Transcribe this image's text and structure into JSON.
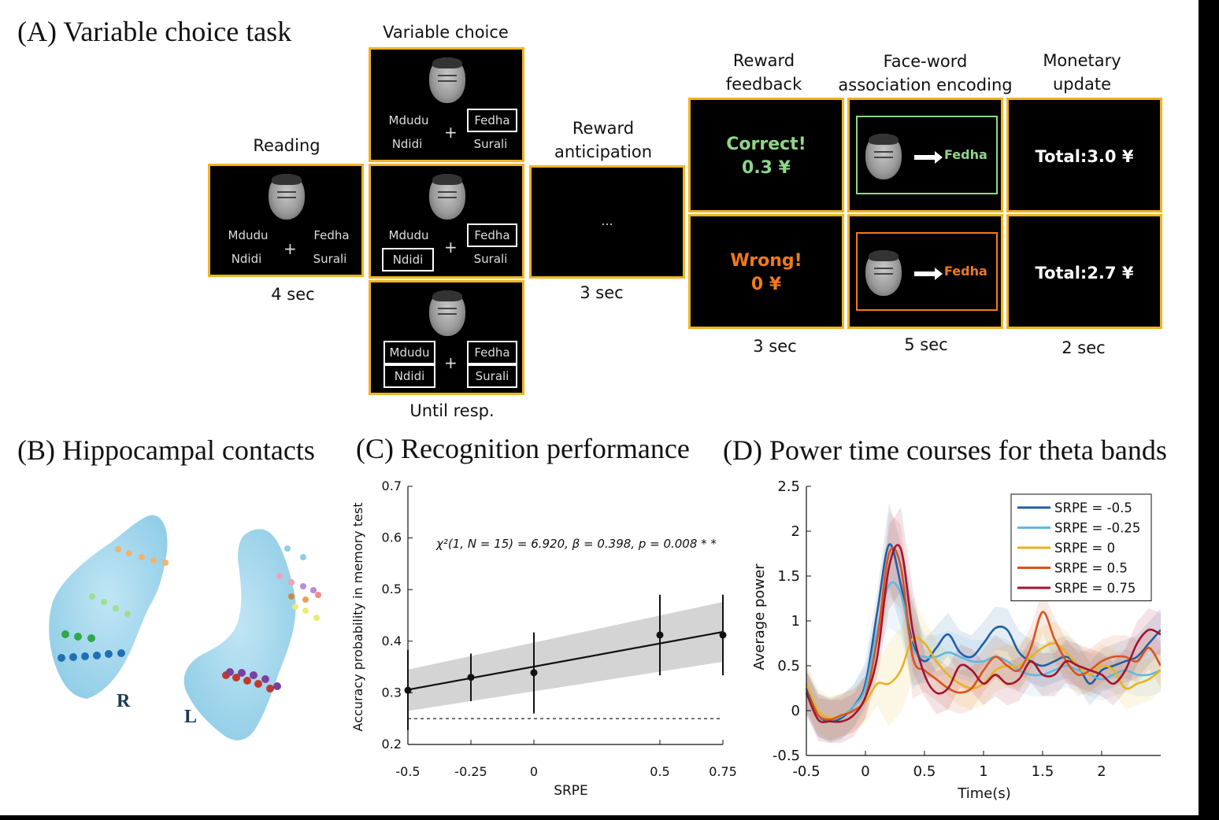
{
  "panels": {
    "a": "(A) Variable choice task",
    "b": "(B) Hippocampal contacts",
    "c": "(C) Recognition performance",
    "d": "(D) Power time courses for theta bands"
  },
  "task": {
    "reading": {
      "label": "Reading",
      "time": "4 sec"
    },
    "choice": {
      "label": "Variable choice",
      "time": "Until resp."
    },
    "anticipation": {
      "label1": "Reward",
      "label2": "anticipation",
      "time": "3 sec",
      "dots": "..."
    },
    "feedback": {
      "label1": "Reward",
      "label2": "feedback",
      "time": "3 sec",
      "correct": "Correct!",
      "correct_amt": "0.3 ¥",
      "wrong": "Wrong!",
      "wrong_amt": "0 ¥"
    },
    "encoding": {
      "label1": "Face-word",
      "label2": "association encoding",
      "time": "5 sec",
      "word": "Fedha"
    },
    "update": {
      "label1": "Monetary",
      "label2": "update",
      "time": "2 sec",
      "total_hi": "Total:3.0 ¥",
      "total_lo": "Total:2.7 ¥"
    },
    "words": {
      "w1": "Mdudu",
      "w2": "Fedha",
      "w3": "Ndidi",
      "w4": "Surali",
      "plus": "+"
    },
    "colors": {
      "border": "#f0b323",
      "correct": "#8fd68a",
      "wrong": "#f07a1a"
    }
  },
  "hippo": {
    "right": "R",
    "left": "L"
  },
  "chart_data": [
    {
      "type": "line",
      "title": "Recognition performance",
      "xlabel": "SRPE",
      "ylabel": "Accuracy probability in memory test",
      "annotation": "χ²(1, N = 15) = 6.920,  β = 0.398, p = 0.008 * *",
      "xlim": [
        -0.5,
        0.75
      ],
      "ylim": [
        0.2,
        0.7
      ],
      "xticks": [
        -0.5,
        -0.25,
        0,
        0.5,
        0.75
      ],
      "xtick_labels": [
        "-0.5",
        "-0.25",
        "0",
        "0.5",
        "0.75"
      ],
      "yticks": [
        0.2,
        0.3,
        0.4,
        0.5,
        0.6,
        0.7
      ],
      "ytick_labels": [
        "0.2",
        "0.3",
        "0.4",
        "0.5",
        "0.6",
        "0.7"
      ],
      "points": [
        {
          "x": -0.5,
          "y": 0.305,
          "lo": 0.228,
          "hi": 0.383
        },
        {
          "x": -0.25,
          "y": 0.33,
          "lo": 0.284,
          "hi": 0.376
        },
        {
          "x": 0,
          "y": 0.339,
          "lo": 0.26,
          "hi": 0.417
        },
        {
          "x": 0.5,
          "y": 0.412,
          "lo": 0.334,
          "hi": 0.49
        },
        {
          "x": 0.75,
          "y": 0.412,
          "lo": 0.334,
          "hi": 0.49
        }
      ],
      "fit": {
        "x": [
          -0.5,
          0.75
        ],
        "y": [
          0.306,
          0.418
        ],
        "band_lo": [
          0.265,
          0.36
        ],
        "band_hi": [
          0.345,
          0.476
        ]
      },
      "chance": 0.25
    },
    {
      "type": "line",
      "title": "Power time courses for theta bands",
      "xlabel": "Time(s)",
      "ylabel": "Average power",
      "xlim": [
        -0.5,
        2.5
      ],
      "ylim": [
        -0.5,
        2.5
      ],
      "xticks": [
        -0.5,
        0,
        0.5,
        1,
        1.5,
        2
      ],
      "xtick_labels": [
        "-0.5",
        "0",
        "0.5",
        "1",
        "1.5",
        "2"
      ],
      "yticks": [
        -0.5,
        0,
        0.5,
        1,
        1.5,
        2,
        2.5
      ],
      "ytick_labels": [
        "-0.5",
        "0",
        "0.5",
        "1",
        "1.5",
        "2",
        "2.5"
      ],
      "legend": "top-right",
      "x": [
        -0.5,
        -0.4,
        -0.3,
        -0.2,
        -0.1,
        0,
        0.1,
        0.2,
        0.3,
        0.4,
        0.5,
        0.6,
        0.7,
        0.8,
        0.9,
        1,
        1.1,
        1.2,
        1.3,
        1.4,
        1.5,
        1.6,
        1.7,
        1.8,
        1.9,
        2,
        2.1,
        2.2,
        2.3,
        2.4,
        2.5
      ],
      "series": [
        {
          "name": "SRPE = -0.5",
          "color": "#1f5fa6",
          "values": [
            0.25,
            -0.05,
            -0.12,
            -0.08,
            0.05,
            0.3,
            1.1,
            1.85,
            1.4,
            0.75,
            0.55,
            0.7,
            0.85,
            0.65,
            0.6,
            0.75,
            0.92,
            0.9,
            0.65,
            0.55,
            0.5,
            0.55,
            0.6,
            0.5,
            0.3,
            0.45,
            0.5,
            0.55,
            0.6,
            0.75,
            0.9
          ]
        },
        {
          "name": "SRPE = -0.25",
          "color": "#5fb9e0",
          "values": [
            0.2,
            -0.05,
            -0.1,
            -0.06,
            0.05,
            0.25,
            0.9,
            1.4,
            1.3,
            0.7,
            0.6,
            0.6,
            0.65,
            0.6,
            0.55,
            0.55,
            0.6,
            0.55,
            0.45,
            0.4,
            0.4,
            0.45,
            0.5,
            0.45,
            0.4,
            0.35,
            0.4,
            0.45,
            0.4,
            0.4,
            0.45
          ]
        },
        {
          "name": "SRPE = 0",
          "color": "#e8b320",
          "values": [
            0.3,
            0.0,
            -0.08,
            -0.05,
            0.0,
            0.1,
            0.3,
            0.3,
            0.45,
            0.8,
            0.75,
            0.55,
            0.4,
            0.3,
            0.25,
            0.3,
            0.45,
            0.5,
            0.5,
            0.6,
            0.7,
            0.75,
            0.65,
            0.5,
            0.4,
            0.5,
            0.45,
            0.25,
            0.3,
            0.35,
            0.45
          ]
        },
        {
          "name": "SRPE = 0.5",
          "color": "#d9531e",
          "values": [
            0.2,
            -0.05,
            -0.1,
            -0.05,
            0.0,
            0.15,
            0.8,
            1.75,
            1.6,
            0.6,
            0.45,
            0.35,
            0.25,
            0.2,
            0.25,
            0.45,
            0.6,
            0.5,
            0.45,
            0.7,
            1.1,
            0.8,
            0.55,
            0.4,
            0.45,
            0.55,
            0.6,
            0.6,
            0.55,
            0.7,
            0.5
          ]
        },
        {
          "name": "SRPE = 0.75",
          "color": "#a2142f",
          "values": [
            0.2,
            -0.1,
            -0.12,
            -0.12,
            -0.05,
            0.15,
            0.6,
            1.6,
            1.8,
            0.9,
            0.4,
            0.2,
            0.25,
            0.5,
            0.45,
            0.3,
            0.4,
            0.3,
            0.35,
            0.55,
            0.4,
            0.4,
            0.55,
            0.5,
            0.45,
            0.4,
            0.3,
            0.45,
            0.75,
            0.9,
            0.85
          ]
        }
      ]
    }
  ]
}
